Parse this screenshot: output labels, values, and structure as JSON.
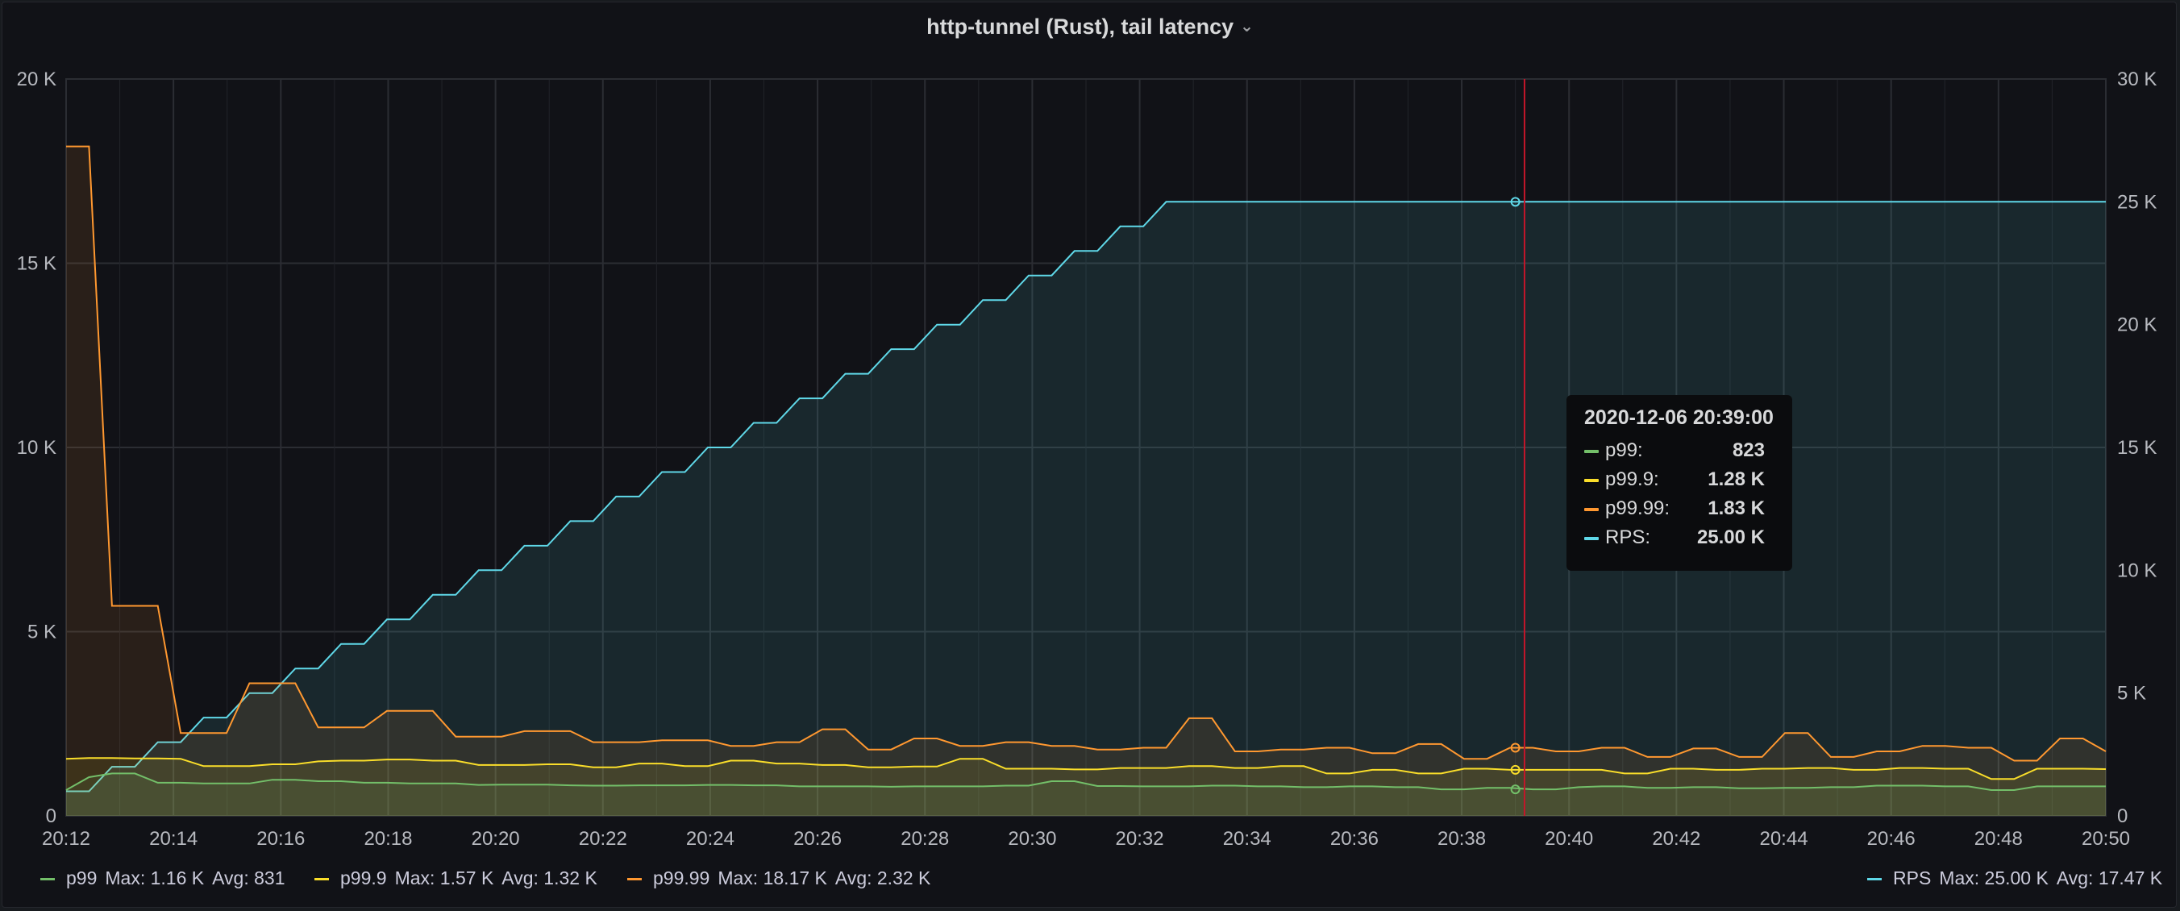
{
  "panel": {
    "title": "http-tunnel (Rust), tail latency"
  },
  "chart_data": {
    "type": "line",
    "title": "http-tunnel (Rust), tail latency",
    "x_ticks": [
      "20:12",
      "20:14",
      "20:16",
      "20:18",
      "20:20",
      "20:22",
      "20:24",
      "20:26",
      "20:28",
      "20:30",
      "20:32",
      "20:34",
      "20:36",
      "20:38",
      "20:40",
      "20:42",
      "20:44",
      "20:46",
      "20:48",
      "20:50"
    ],
    "x_start": "20:12",
    "x_end": "20:50",
    "left_axis": {
      "ylim": [
        0,
        20000
      ],
      "ticks": [
        "0",
        "5 K",
        "10 K",
        "15 K",
        "20 K"
      ]
    },
    "right_axis": {
      "ylim": [
        0,
        30000
      ],
      "ticks": [
        "0",
        "5 K",
        "10 K",
        "15 K",
        "20 K",
        "25 K",
        "30 K"
      ]
    },
    "grid": true,
    "crosshair_x": 27.17,
    "series": [
      {
        "name": "p99",
        "color": "#73bf69",
        "axis": "left",
        "values": [
          700,
          1050,
          1150,
          1150,
          900,
          900,
          880,
          880,
          880,
          980,
          980,
          940,
          940,
          900,
          900,
          880,
          880,
          880,
          840,
          850,
          850,
          850,
          830,
          820,
          820,
          830,
          830,
          830,
          840,
          840,
          830,
          830,
          800,
          800,
          800,
          800,
          790,
          800,
          800,
          800,
          800,
          820,
          820,
          940,
          940,
          810,
          810,
          800,
          800,
          800,
          820,
          820,
          800,
          800,
          780,
          780,
          800,
          800,
          780,
          780,
          720,
          720,
          760,
          760,
          720,
          720,
          780,
          800,
          800,
          760,
          760,
          780,
          780,
          750,
          750,
          760,
          760,
          780,
          780,
          820,
          820,
          820,
          800,
          800,
          700,
          700,
          800,
          800,
          800,
          800
        ]
      },
      {
        "name": "p99.9",
        "color": "#fade2a",
        "axis": "left",
        "values": [
          1550,
          1570,
          1570,
          1560,
          1560,
          1550,
          1350,
          1350,
          1350,
          1400,
          1400,
          1480,
          1500,
          1500,
          1530,
          1530,
          1500,
          1500,
          1380,
          1380,
          1380,
          1400,
          1400,
          1320,
          1320,
          1420,
          1420,
          1350,
          1350,
          1500,
          1500,
          1420,
          1420,
          1380,
          1380,
          1320,
          1320,
          1340,
          1340,
          1550,
          1550,
          1280,
          1280,
          1280,
          1260,
          1260,
          1300,
          1300,
          1300,
          1350,
          1350,
          1300,
          1300,
          1350,
          1350,
          1150,
          1150,
          1250,
          1250,
          1150,
          1150,
          1280,
          1280,
          1250,
          1250,
          1250,
          1250,
          1250,
          1150,
          1150,
          1280,
          1280,
          1250,
          1250,
          1280,
          1280,
          1300,
          1300,
          1250,
          1250,
          1300,
          1300,
          1280,
          1280,
          1000,
          1000,
          1280,
          1280,
          1280,
          1270
        ]
      },
      {
        "name": "p99.99",
        "color": "#ff9830",
        "axis": "left",
        "values": [
          18170,
          18170,
          5700,
          5700,
          5700,
          2250,
          2250,
          2250,
          3600,
          3600,
          3600,
          2400,
          2400,
          2400,
          2850,
          2850,
          2850,
          2150,
          2150,
          2150,
          2300,
          2300,
          2300,
          2000,
          2000,
          2000,
          2050,
          2050,
          2050,
          1900,
          1900,
          2000,
          2000,
          2350,
          2350,
          1800,
          1800,
          2100,
          2100,
          1900,
          1900,
          2000,
          2000,
          1900,
          1900,
          1800,
          1800,
          1850,
          1850,
          2650,
          2650,
          1750,
          1750,
          1800,
          1800,
          1850,
          1850,
          1700,
          1700,
          1950,
          1950,
          1550,
          1550,
          1850,
          1850,
          1750,
          1750,
          1850,
          1850,
          1600,
          1600,
          1830,
          1830,
          1600,
          1600,
          2250,
          2250,
          1600,
          1600,
          1750,
          1750,
          1900,
          1900,
          1850,
          1850,
          1500,
          1500,
          2100,
          2100,
          1750
        ]
      },
      {
        "name": "RPS",
        "color": "#5fd8e8",
        "axis": "right",
        "values": [
          1000,
          1000,
          2000,
          2000,
          3000,
          3000,
          4000,
          4000,
          5000,
          5000,
          6000,
          6000,
          7000,
          7000,
          8000,
          8000,
          9000,
          9000,
          10000,
          10000,
          11000,
          11000,
          12000,
          12000,
          13000,
          13000,
          14000,
          14000,
          15000,
          15000,
          16000,
          16000,
          17000,
          17000,
          18000,
          18000,
          19000,
          19000,
          20000,
          20000,
          21000,
          21000,
          22000,
          22000,
          23000,
          23000,
          24000,
          24000,
          25000,
          25000,
          25000,
          25000,
          25000,
          25000,
          25000,
          25000,
          25000,
          25000,
          25000,
          25000,
          25000,
          25000,
          25000,
          25000,
          25000,
          25000,
          25000,
          25000,
          25000,
          25000,
          25000,
          25000,
          25000,
          25000,
          25000,
          25000,
          25000,
          25000,
          25000,
          25000,
          25000,
          25000,
          25000,
          25000,
          25000,
          25000,
          25000,
          25000,
          25000,
          25000
        ]
      }
    ]
  },
  "tooltip": {
    "time": "2020-12-06 20:39:00",
    "rows": [
      {
        "name": "p99:",
        "value": "823",
        "color": "#73bf69"
      },
      {
        "name": "p99.9:",
        "value": "1.28 K",
        "color": "#fade2a"
      },
      {
        "name": "p99.99:",
        "value": "1.83 K",
        "color": "#ff9830"
      },
      {
        "name": "RPS:",
        "value": "25.00 K",
        "color": "#5fd8e8"
      }
    ]
  },
  "legend": [
    {
      "name": "p99",
      "max": "Max: 1.16 K",
      "avg": "Avg: 831",
      "color": "#73bf69"
    },
    {
      "name": "p99.9",
      "max": "Max: 1.57 K",
      "avg": "Avg: 1.32 K",
      "color": "#fade2a"
    },
    {
      "name": "p99.99",
      "max": "Max: 18.17 K",
      "avg": "Avg: 2.32 K",
      "color": "#ff9830"
    },
    {
      "name": "RPS",
      "max": "Max: 25.00 K",
      "avg": "Avg: 17.47 K",
      "color": "#5fd8e8"
    }
  ]
}
